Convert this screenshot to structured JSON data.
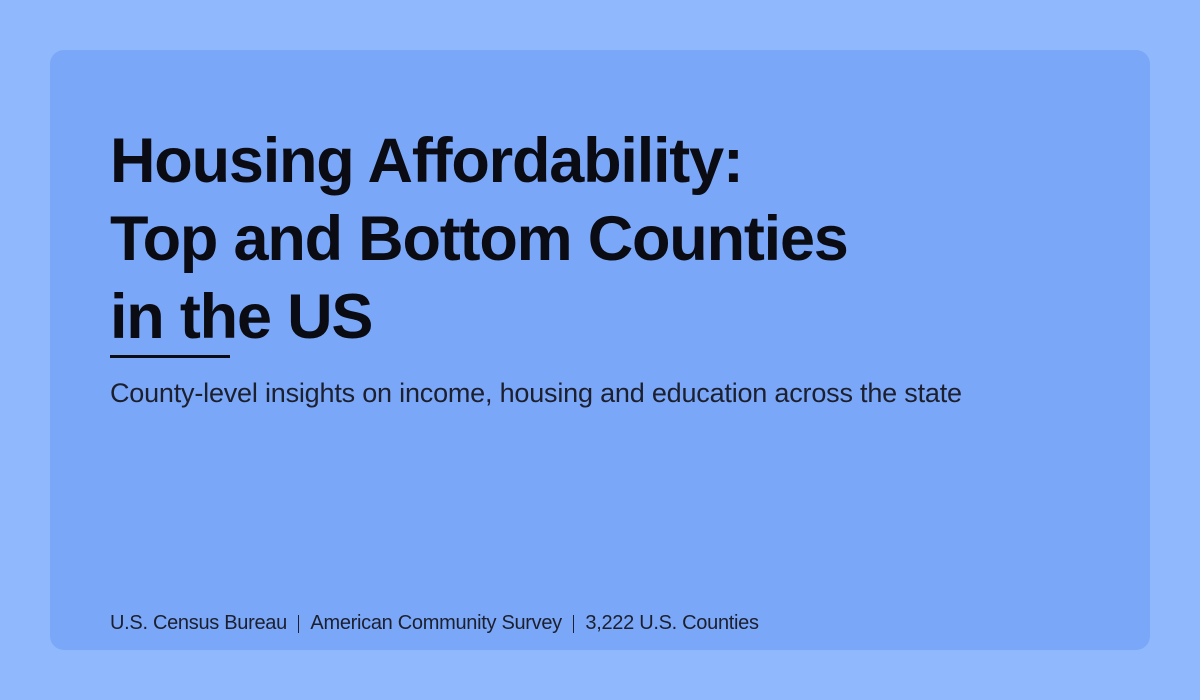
{
  "title_lines": [
    "Housing Affordability:",
    "Top and Bottom Counties",
    "in the US"
  ],
  "subtitle": "County-level insights on income, housing and education across the state",
  "footer": [
    "U.S. Census Bureau",
    "American Community Survey",
    "3,222 U.S. Counties"
  ]
}
